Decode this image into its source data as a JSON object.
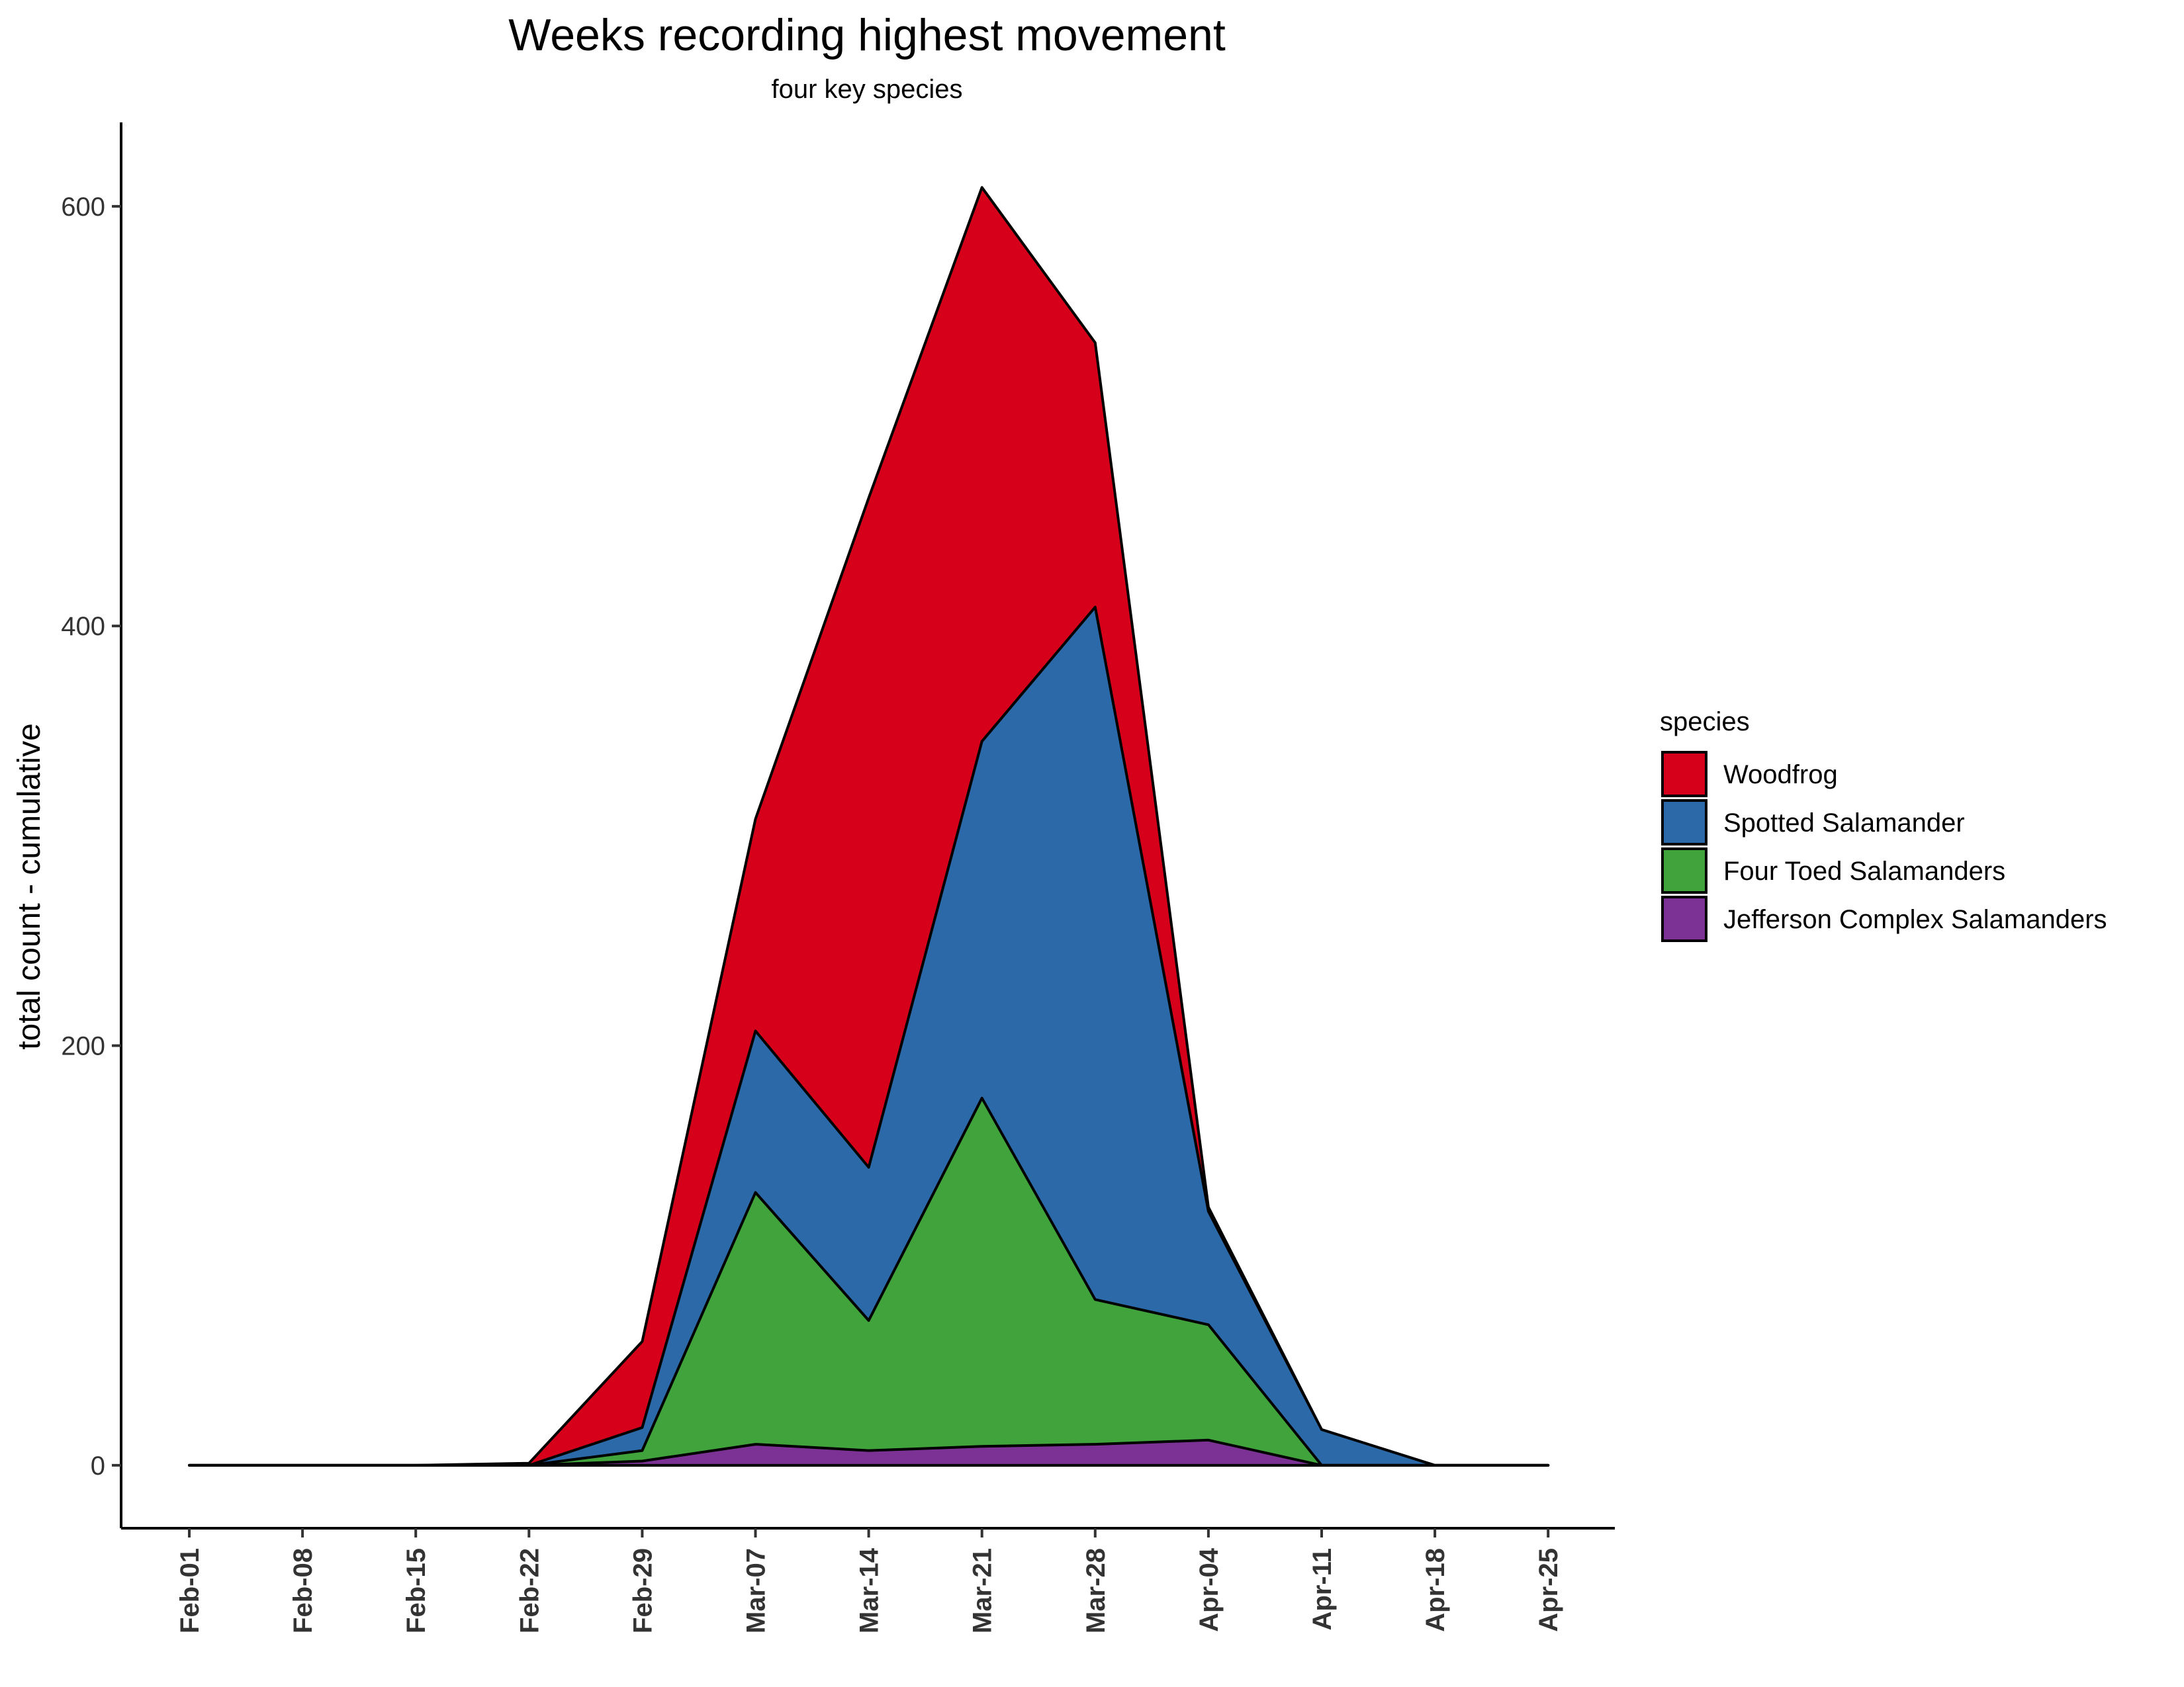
{
  "chart_data": {
    "type": "area",
    "stacked": true,
    "title": "Weeks recording highest movement",
    "subtitle": "four key species",
    "xlabel": "",
    "ylabel": "total count - cumulative",
    "x": [
      "Feb-01",
      "Feb-08",
      "Feb-15",
      "Feb-22",
      "Feb-29",
      "Mar-07",
      "Mar-14",
      "Mar-21",
      "Mar-28",
      "Apr-04",
      "Apr-11",
      "Apr-18",
      "Apr-25"
    ],
    "yticks": [
      0,
      200,
      400,
      600
    ],
    "ylim": [
      -30,
      640
    ],
    "grid": false,
    "legend": {
      "title": "species",
      "position": "right",
      "entries": [
        "Woodfrog",
        "Spotted Salamander",
        "Four Toed Salamanders",
        "Jefferson Complex Salamanders"
      ]
    },
    "series": [
      {
        "name": "Jefferson Complex Salamanders",
        "color": "#7B3294",
        "values": [
          0,
          0,
          0,
          0,
          2,
          10,
          7,
          9,
          10,
          12,
          0,
          0,
          0
        ]
      },
      {
        "name": "Four Toed Salamanders",
        "color": "#41A33B",
        "values": [
          0,
          0,
          0,
          0,
          5,
          120,
          62,
          166,
          69,
          55,
          0,
          0,
          0
        ]
      },
      {
        "name": "Spotted Salamander",
        "color": "#2C69A8",
        "values": [
          0,
          0,
          0,
          0,
          11,
          77,
          73,
          170,
          330,
          54,
          17,
          0,
          0
        ]
      },
      {
        "name": "Woodfrog",
        "color": "#D7001A",
        "values": [
          0,
          0,
          0,
          1,
          41,
          101,
          319,
          264,
          126,
          2,
          0,
          0,
          0
        ]
      }
    ]
  }
}
